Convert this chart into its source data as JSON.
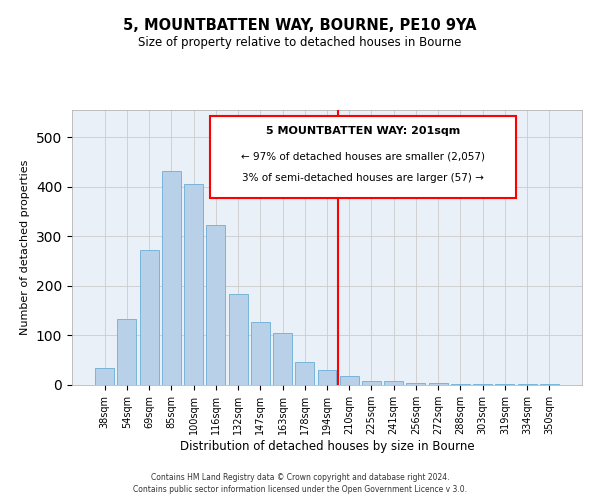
{
  "title": "5, MOUNTBATTEN WAY, BOURNE, PE10 9YA",
  "subtitle": "Size of property relative to detached houses in Bourne",
  "xlabel": "Distribution of detached houses by size in Bourne",
  "ylabel": "Number of detached properties",
  "bar_labels": [
    "38sqm",
    "54sqm",
    "69sqm",
    "85sqm",
    "100sqm",
    "116sqm",
    "132sqm",
    "147sqm",
    "163sqm",
    "178sqm",
    "194sqm",
    "210sqm",
    "225sqm",
    "241sqm",
    "256sqm",
    "272sqm",
    "288sqm",
    "303sqm",
    "319sqm",
    "334sqm",
    "350sqm"
  ],
  "bar_values": [
    35,
    133,
    272,
    432,
    405,
    322,
    183,
    127,
    104,
    46,
    30,
    19,
    9,
    9,
    5,
    5,
    3,
    2,
    2,
    2,
    2
  ],
  "bar_color": "#b8d0e8",
  "bar_edge_color": "#6aaed6",
  "reference_line_x": 10.5,
  "reference_line_color": "red",
  "annotation_title": "5 MOUNTBATTEN WAY: 201sqm",
  "annotation_line1": "← 97% of detached houses are smaller (2,057)",
  "annotation_line2": "3% of semi-detached houses are larger (57) →",
  "annotation_box_facecolor": "#ffffff",
  "annotation_box_edgecolor": "red",
  "ylim": [
    0,
    555
  ],
  "footnote1": "Contains HM Land Registry data © Crown copyright and database right 2024.",
  "footnote2": "Contains public sector information licensed under the Open Government Licence v 3.0.",
  "bg_color": "#eaf0f8"
}
